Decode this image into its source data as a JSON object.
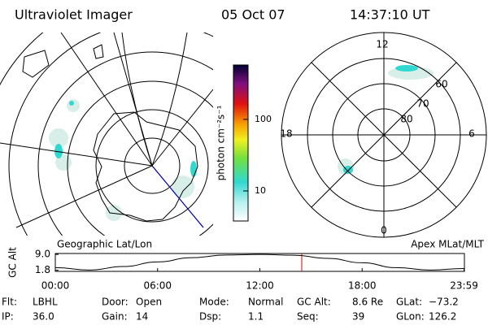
{
  "header": {
    "instrument": "Ultraviolet Imager",
    "date": "05 Oct 07",
    "time": "14:37:10 UT"
  },
  "left_panel": {
    "label": "Geographic Lat/Lon"
  },
  "right_panel": {
    "label": "Apex MLat/MLT",
    "mlt_labels": [
      "12",
      "18",
      "6",
      "0"
    ],
    "mlat_labels": [
      "60",
      "70",
      "80"
    ]
  },
  "colorbar": {
    "label": "photon cm⁻²s⁻¹",
    "range": [
      3.8,
      575
    ],
    "ticks": [
      10,
      100
    ],
    "log": true
  },
  "orbit_plot": {
    "type": "line",
    "ylabel": "GC Alt",
    "color": "#000000",
    "x": [
      0,
      2,
      4,
      6,
      8,
      10,
      12,
      14,
      16,
      18,
      20,
      22,
      24
    ],
    "values": [
      3.0,
      1.9,
      3.5,
      5.6,
      7.5,
      8.7,
      9.0,
      8.6,
      7.2,
      5.2,
      3.0,
      1.9,
      2.6
    ],
    "xlim": [
      0,
      24
    ],
    "xticks": [
      {
        "value": 0,
        "label": "00:00"
      },
      {
        "value": 6,
        "label": "06:00"
      },
      {
        "value": 12,
        "label": "12:00"
      },
      {
        "value": 18,
        "label": "18:00"
      },
      {
        "value": 23.98,
        "label": "23:59"
      }
    ],
    "ylim": [
      1.3,
      9.4
    ],
    "yticks": [
      {
        "value": 9.0,
        "label": "9.0"
      },
      {
        "value": 1.8,
        "label": "1.8"
      }
    ]
  },
  "status": [
    [
      {
        "key": "Flt:",
        "value": "LBHL"
      },
      {
        "key": "Door:",
        "value": "Open"
      },
      {
        "key": "Mode:",
        "value": "Normal"
      },
      {
        "key": "GC Alt:",
        "value": "8.6 Re"
      },
      {
        "key": "GLat:",
        "value": "−73.2"
      }
    ],
    [
      {
        "key": "IP:",
        "value": "36.0"
      },
      {
        "key": "Gain:",
        "value": "14"
      },
      {
        "key": "Dsp:",
        "value": "1.1"
      },
      {
        "key": "Seq:",
        "value": "39"
      },
      {
        "key": "GLon:",
        "value": "126.2"
      }
    ]
  ]
}
